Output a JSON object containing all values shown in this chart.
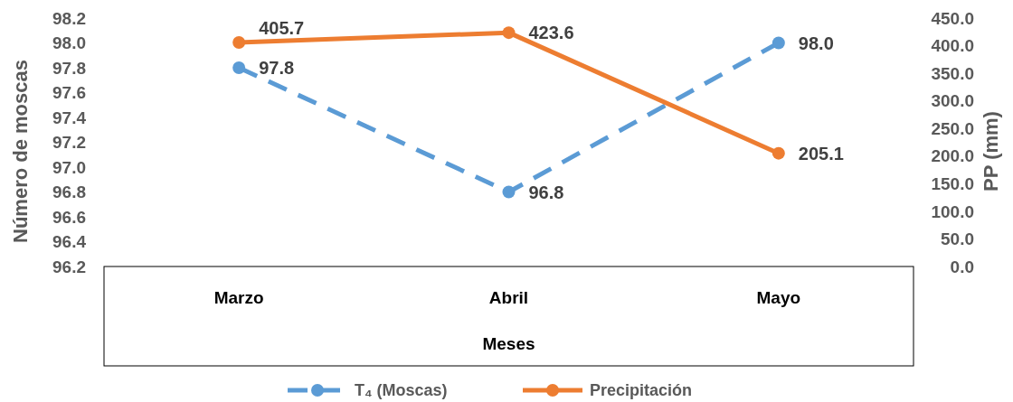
{
  "chart_data": {
    "type": "line",
    "xlabel": "Meses",
    "ylabel": "Número de moscas",
    "y2label": "PP (mm)",
    "categories": [
      "Marzo",
      "Abril",
      "Mayo"
    ],
    "series": [
      {
        "name": "T₄ (Moscas)",
        "color": "#5b9bd5",
        "values": [
          97.8,
          96.8,
          98.0
        ],
        "value_labels": [
          "97.8",
          "96.8",
          "98.0"
        ],
        "line_style": "dashed"
      },
      {
        "name": "Precipitación",
        "color": "#ed7d31",
        "values": [
          405.7,
          423.6,
          205.1
        ],
        "value_labels": [
          "405.7",
          "423.6",
          "205.1"
        ],
        "axis": "y2",
        "line_style": "solid"
      }
    ],
    "ylim": [
      96.2,
      98.2
    ],
    "yticks": [
      96.2,
      96.4,
      96.6,
      96.8,
      {
        "value": 97.0,
        "label": "97.0"
      },
      97.2,
      97.4,
      97.6,
      97.8,
      {
        "value": 98.0,
        "label": "98.0"
      },
      98.2
    ],
    "y2lim": [
      0,
      450
    ],
    "y2ticks": [
      {
        "value": 0,
        "label": "0.0"
      },
      {
        "value": 50,
        "label": "50.0"
      },
      {
        "value": 100,
        "label": "100.0"
      },
      {
        "value": 150,
        "label": "150.0"
      },
      {
        "value": 200,
        "label": "200.0"
      },
      {
        "value": 250,
        "label": "250.0"
      },
      {
        "value": 300,
        "label": "300.0"
      },
      {
        "value": 350,
        "label": "350.0"
      },
      {
        "value": 400,
        "label": "400.0"
      },
      {
        "value": 450,
        "label": "450.0"
      }
    ],
    "marker": "circle",
    "legend": "bottom",
    "grid": false
  }
}
